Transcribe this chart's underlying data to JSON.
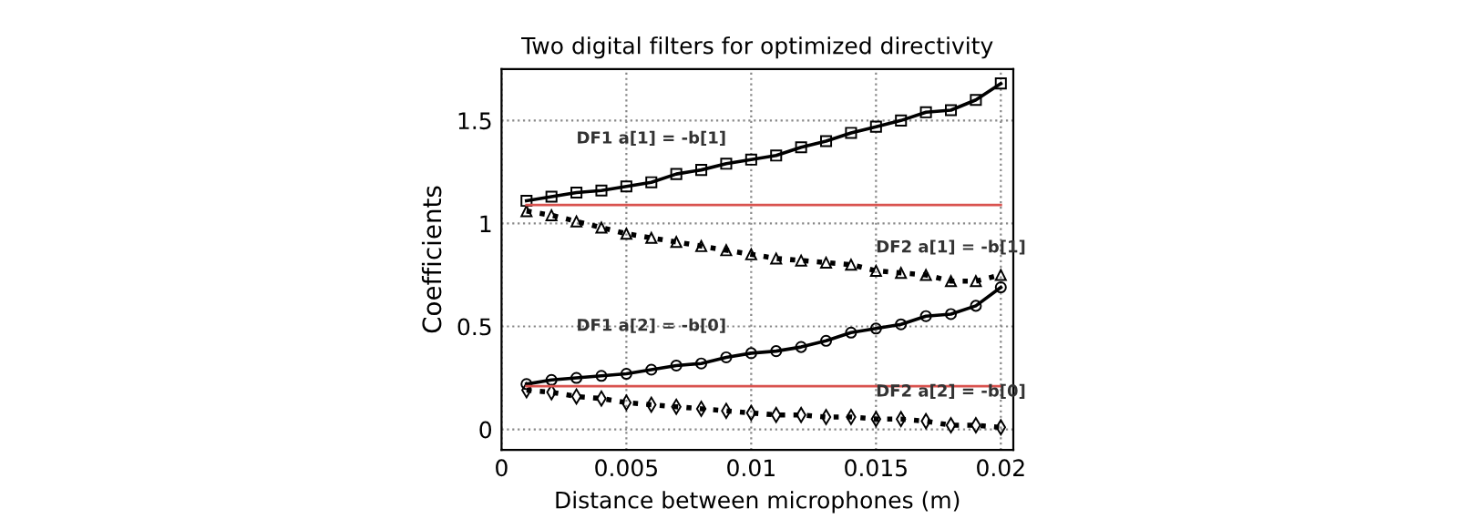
{
  "chart_data": {
    "type": "line",
    "title": "Two digital filters for optimized directivity",
    "xlabel": "Distance between microphones (m)",
    "ylabel": "Coefficients",
    "x": [
      0.001,
      0.002,
      0.003,
      0.004,
      0.005,
      0.006,
      0.007,
      0.008,
      0.009,
      0.01,
      0.011,
      0.012,
      0.013,
      0.014,
      0.015,
      0.016,
      0.017,
      0.018,
      0.019,
      0.02
    ],
    "series": [
      {
        "name": "DF1 a[1] = -b[1]",
        "color": "#000000",
        "marker": "square",
        "line_style": "solid",
        "values": [
          1.11,
          1.13,
          1.15,
          1.16,
          1.18,
          1.2,
          1.24,
          1.26,
          1.29,
          1.31,
          1.33,
          1.37,
          1.4,
          1.44,
          1.47,
          1.5,
          1.54,
          1.55,
          1.6,
          1.68
        ]
      },
      {
        "name": "DF2 a[1] = -b[1]",
        "color": "#000000",
        "marker": "triangle",
        "line_style": "dotted",
        "values": [
          1.06,
          1.04,
          1.01,
          0.98,
          0.95,
          0.93,
          0.91,
          0.89,
          0.87,
          0.85,
          0.83,
          0.82,
          0.81,
          0.8,
          0.77,
          0.76,
          0.75,
          0.72,
          0.72,
          0.75
        ]
      },
      {
        "name": "DF1 a[2] = -b[0]",
        "color": "#000000",
        "marker": "circle",
        "line_style": "solid",
        "values": [
          0.22,
          0.24,
          0.25,
          0.26,
          0.27,
          0.29,
          0.31,
          0.32,
          0.35,
          0.37,
          0.38,
          0.4,
          0.43,
          0.47,
          0.49,
          0.51,
          0.55,
          0.56,
          0.6,
          0.69
        ]
      },
      {
        "name": "DF2 a[2] = -b[0]",
        "color": "#000000",
        "marker": "diamond",
        "line_style": "dotted",
        "values": [
          0.19,
          0.18,
          0.16,
          0.15,
          0.13,
          0.12,
          0.11,
          0.1,
          0.09,
          0.08,
          0.07,
          0.07,
          0.06,
          0.06,
          0.05,
          0.05,
          0.04,
          0.02,
          0.02,
          0.01
        ]
      },
      {
        "color": "#d9534f",
        "marker": "none",
        "line_style": "solid",
        "values": [
          1.09,
          1.09,
          1.09,
          1.09,
          1.09,
          1.09,
          1.09,
          1.09,
          1.09,
          1.09,
          1.09,
          1.09,
          1.09,
          1.09,
          1.09,
          1.09,
          1.09,
          1.09,
          1.09,
          1.09
        ]
      },
      {
        "color": "#d9534f",
        "marker": "none",
        "line_style": "solid",
        "values": [
          0.21,
          0.21,
          0.21,
          0.21,
          0.21,
          0.21,
          0.21,
          0.21,
          0.21,
          0.21,
          0.21,
          0.21,
          0.21,
          0.21,
          0.21,
          0.21,
          0.21,
          0.21,
          0.21,
          0.21
        ]
      }
    ],
    "xlim": [
      0,
      0.0205
    ],
    "xticks": [
      0,
      0.005,
      0.01,
      0.015,
      0.02
    ],
    "ylim": [
      -0.1,
      1.75
    ],
    "yticks": [
      0,
      0.5,
      1,
      1.5
    ],
    "grid": true
  }
}
